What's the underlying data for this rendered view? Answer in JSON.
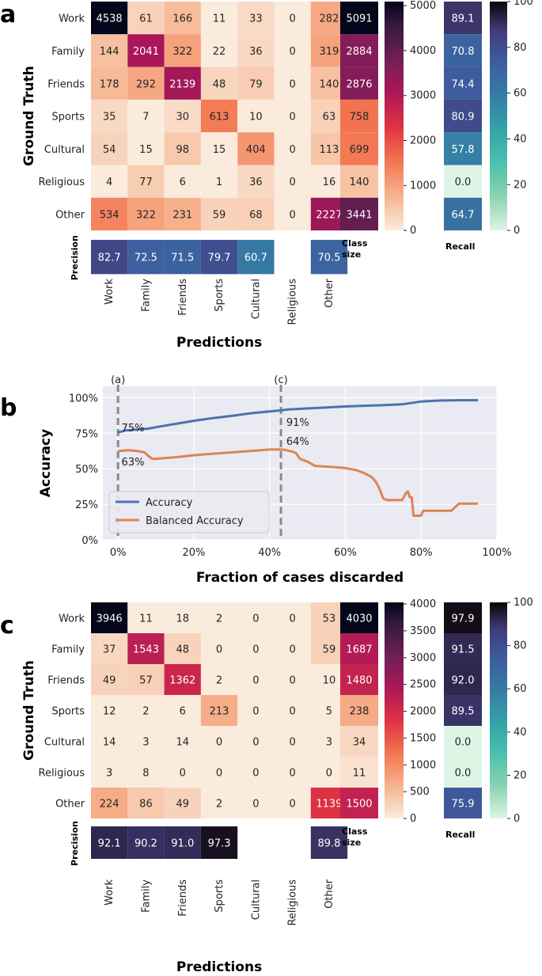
{
  "chart_data": [
    {
      "panel": "a",
      "type": "heatmap",
      "title": "",
      "ylabel": "Ground Truth",
      "xlabel": "Predictions",
      "rows": [
        "Work",
        "Family",
        "Friends",
        "Sports",
        "Cultural",
        "Religious",
        "Other"
      ],
      "cols": [
        "Work",
        "Family",
        "Friends",
        "Sports",
        "Cultural",
        "Religious",
        "Other"
      ],
      "values": [
        [
          4538,
          61,
          166,
          11,
          33,
          0,
          282
        ],
        [
          144,
          2041,
          322,
          22,
          36,
          0,
          319
        ],
        [
          178,
          292,
          2139,
          48,
          79,
          0,
          140
        ],
        [
          35,
          7,
          30,
          613,
          10,
          0,
          63
        ],
        [
          54,
          15,
          98,
          15,
          404,
          0,
          113
        ],
        [
          4,
          77,
          6,
          1,
          36,
          0,
          16
        ],
        [
          534,
          322,
          231,
          59,
          68,
          0,
          2227
        ]
      ],
      "precision_label": "Precision",
      "precision": [
        "82.7",
        "72.5",
        "71.5",
        "79.7",
        "60.7",
        "",
        "70.5"
      ],
      "class_size_label": "Class size",
      "class_size": [
        5091,
        2884,
        2876,
        758,
        699,
        140,
        3441
      ],
      "class_size_range": [
        0,
        5091
      ],
      "class_size_ticks": [
        "0",
        "1000",
        "2000",
        "3000",
        "4000",
        "5000"
      ],
      "recall_label": "Recall",
      "recall": [
        "89.1",
        "70.8",
        "74.4",
        "80.9",
        "57.8",
        "0.0",
        "64.7"
      ],
      "recall_ticks": [
        "0",
        "20",
        "40",
        "60",
        "80",
        "100"
      ]
    },
    {
      "panel": "b",
      "type": "line",
      "xlabel": "Fraction of cases discarded",
      "ylabel": "Accuracy",
      "xlim": [
        -4,
        100
      ],
      "ylim": [
        0,
        108
      ],
      "xticks": [
        "0%",
        "20%",
        "40%",
        "60%",
        "80%",
        "100%"
      ],
      "yticks": [
        "0%",
        "25%",
        "50%",
        "75%",
        "100%"
      ],
      "legend_position": "lower-left",
      "vlines": [
        {
          "x": 0,
          "label": "(a)"
        },
        {
          "x": 43,
          "label": "(c)"
        }
      ],
      "series": [
        {
          "name": "Accuracy",
          "color": "#4c72b0",
          "x": [
            0,
            2,
            5,
            8,
            10,
            15,
            20,
            25,
            30,
            35,
            40,
            43,
            45,
            50,
            55,
            60,
            65,
            70,
            75,
            78,
            80,
            85,
            90,
            95
          ],
          "y": [
            75.5,
            77,
            77.6,
            78.2,
            79.2,
            81.5,
            83.7,
            85.6,
            87.2,
            89,
            90.3,
            91,
            91.7,
            92.4,
            93.1,
            93.8,
            94.3,
            94.7,
            95.3,
            96.5,
            97.3,
            98,
            98.2,
            98.2
          ]
        },
        {
          "name": "Balanced Accuracy",
          "color": "#dd8452",
          "x": [
            0,
            3,
            5,
            7,
            8,
            9,
            10,
            12,
            15,
            20,
            25,
            30,
            35,
            40,
            43,
            44,
            46,
            47,
            48,
            50,
            52,
            55,
            60,
            63,
            65,
            67,
            68,
            69,
            70,
            71,
            75,
            76,
            76.5,
            77,
            77.5,
            78,
            79,
            80,
            80.5,
            85,
            88,
            90,
            95
          ],
          "y": [
            62.5,
            63,
            62.5,
            61.5,
            59,
            57,
            57,
            57.5,
            58,
            59.5,
            60.5,
            61.5,
            62.5,
            63.5,
            63.5,
            63.3,
            62,
            61,
            57,
            55,
            52,
            51.5,
            50.5,
            49,
            47,
            44,
            41,
            36,
            29,
            28,
            28,
            33,
            34,
            30,
            30,
            17,
            17,
            17,
            20.5,
            20.5,
            20.5,
            25.5,
            25.5
          ]
        }
      ],
      "annotations": [
        {
          "text": "75%",
          "series": "Accuracy"
        },
        {
          "text": "63%",
          "series": "Balanced Accuracy"
        },
        {
          "text": "91%",
          "series": "Accuracy"
        },
        {
          "text": "64%",
          "series": "Balanced Accuracy"
        }
      ]
    },
    {
      "panel": "c",
      "type": "heatmap",
      "title": "",
      "ylabel": "Ground Truth",
      "xlabel": "Predictions",
      "rows": [
        "Work",
        "Family",
        "Friends",
        "Sports",
        "Cultural",
        "Religious",
        "Other"
      ],
      "cols": [
        "Work",
        "Family",
        "Friends",
        "Sports",
        "Cultural",
        "Religious",
        "Other"
      ],
      "values": [
        [
          3946,
          11,
          18,
          2,
          0,
          0,
          53
        ],
        [
          37,
          1543,
          48,
          0,
          0,
          0,
          59
        ],
        [
          49,
          57,
          1362,
          2,
          0,
          0,
          10
        ],
        [
          12,
          2,
          6,
          213,
          0,
          0,
          5
        ],
        [
          14,
          3,
          14,
          0,
          0,
          0,
          3
        ],
        [
          3,
          8,
          0,
          0,
          0,
          0,
          0
        ],
        [
          224,
          86,
          49,
          2,
          0,
          0,
          1139
        ]
      ],
      "precision_label": "Precision",
      "precision": [
        "92.1",
        "90.2",
        "91.0",
        "97.3",
        "",
        "",
        "89.8"
      ],
      "class_size_label": "Class size",
      "class_size": [
        4030,
        1687,
        1480,
        238,
        34,
        11,
        1500
      ],
      "class_size_range": [
        0,
        4030
      ],
      "class_size_ticks": [
        "0",
        "500",
        "1000",
        "1500",
        "2000",
        "2500",
        "3000",
        "3500",
        "4000"
      ],
      "recall_label": "Recall",
      "recall": [
        "97.9",
        "91.5",
        "92.0",
        "89.5",
        "0.0",
        "0.0",
        "75.9"
      ],
      "recall_ticks": [
        "0",
        "20",
        "40",
        "60",
        "80",
        "100"
      ]
    }
  ],
  "panel_labels": [
    "a",
    "b",
    "c"
  ]
}
